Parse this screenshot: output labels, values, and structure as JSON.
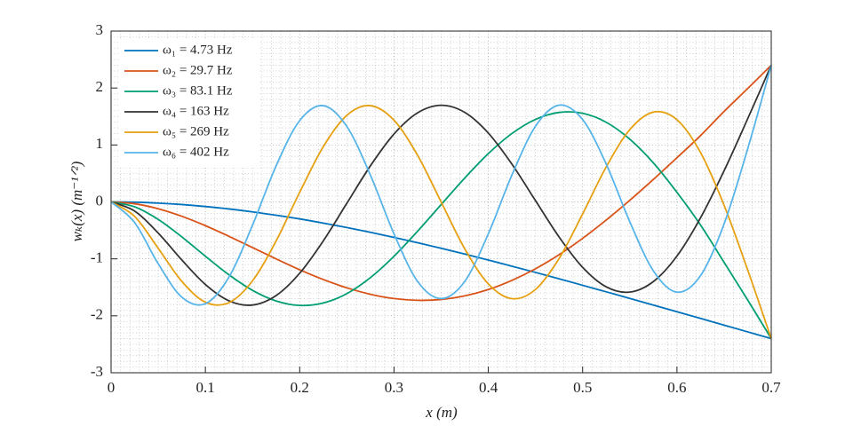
{
  "chart_data": {
    "type": "line",
    "xlabel": "x (m)",
    "ylabel": "wₖ(x) (m⁻¹ᐟ²)",
    "x": [
      0,
      0.025,
      0.05,
      0.075,
      0.1,
      0.125,
      0.15,
      0.175,
      0.2,
      0.225,
      0.25,
      0.275,
      0.3,
      0.325,
      0.35,
      0.375,
      0.4,
      0.425,
      0.45,
      0.475,
      0.5,
      0.525,
      0.55,
      0.575,
      0.6,
      0.625,
      0.65,
      0.675,
      0.7
    ],
    "series": [
      {
        "name": "ω₁ = 4.73 Hz",
        "color": "#0072bd",
        "values": [
          0,
          -0.005,
          -0.021,
          -0.046,
          -0.081,
          -0.124,
          -0.175,
          -0.234,
          -0.299,
          -0.372,
          -0.45,
          -0.534,
          -0.623,
          -0.717,
          -0.815,
          -0.916,
          -1.021,
          -1.129,
          -1.238,
          -1.35,
          -1.464,
          -1.579,
          -1.694,
          -1.811,
          -1.929,
          -2.046,
          -2.164,
          -2.282,
          -2.4
        ]
      },
      {
        "name": "ω₂ = 29.7 Hz",
        "color": "#d95319",
        "values": [
          0,
          -0.032,
          -0.12,
          -0.252,
          -0.417,
          -0.604,
          -0.802,
          -1.0,
          -1.191,
          -1.363,
          -1.509,
          -1.622,
          -1.697,
          -1.728,
          -1.713,
          -1.65,
          -1.539,
          -1.378,
          -1.175,
          -0.928,
          -0.64,
          -0.318,
          0.029,
          0.395,
          0.776,
          1.164,
          1.589,
          1.991,
          2.4
        ]
      },
      {
        "name": "ω₃ = 83.1 Hz",
        "color": "#009e73",
        "values": [
          0,
          -0.086,
          -0.308,
          -0.614,
          -0.953,
          -1.28,
          -1.553,
          -1.739,
          -1.818,
          -1.775,
          -1.611,
          -1.33,
          -0.955,
          -0.515,
          -0.047,
          0.419,
          0.848,
          1.201,
          1.449,
          1.571,
          1.556,
          1.399,
          1.102,
          0.686,
          0.168,
          -0.406,
          -1.062,
          -1.722,
          -2.4
        ]
      },
      {
        "name": "ω₄ = 163 Hz",
        "color": "#333333",
        "values": [
          0,
          -0.161,
          -0.547,
          -1.019,
          -1.45,
          -1.736,
          -1.811,
          -1.645,
          -1.252,
          -0.685,
          -0.024,
          0.634,
          1.192,
          1.564,
          1.697,
          1.572,
          1.209,
          0.664,
          0.023,
          -0.615,
          -1.149,
          -1.491,
          -1.584,
          -1.399,
          -0.951,
          -0.28,
          0.547,
          1.46,
          2.4
        ]
      },
      {
        "name": "ω₅ = 269 Hz",
        "color": "#e6a010",
        "values": [
          0,
          -0.255,
          -0.815,
          -1.395,
          -1.761,
          -1.769,
          -1.385,
          -0.685,
          0.169,
          0.969,
          1.521,
          1.69,
          1.434,
          0.819,
          -0.002,
          -0.823,
          -1.44,
          -1.699,
          -1.537,
          -0.995,
          -0.211,
          0.614,
          1.269,
          1.577,
          1.443,
          0.867,
          -0.06,
          -1.194,
          -2.4
        ]
      },
      {
        "name": "ω₆ = 402 Hz",
        "color": "#56b4e9",
        "values": [
          0,
          -0.363,
          -1.086,
          -1.673,
          -1.788,
          -1.32,
          -0.407,
          0.634,
          1.428,
          1.69,
          1.324,
          0.469,
          -0.561,
          -1.397,
          -1.697,
          -1.397,
          -0.56,
          0.471,
          1.329,
          1.699,
          1.446,
          0.665,
          -0.348,
          -1.211,
          -1.585,
          -1.296,
          -0.387,
          0.932,
          2.4
        ]
      }
    ],
    "xlim": [
      0,
      0.7
    ],
    "xticks": [
      0,
      0.1,
      0.2,
      0.3,
      0.4,
      0.5,
      0.6,
      0.7
    ],
    "ylim": [
      -3,
      3
    ],
    "yticks": [
      -3,
      -2,
      -1,
      0,
      1,
      2,
      3
    ],
    "grid": true,
    "minor_grid": true,
    "legend": "upper left"
  }
}
